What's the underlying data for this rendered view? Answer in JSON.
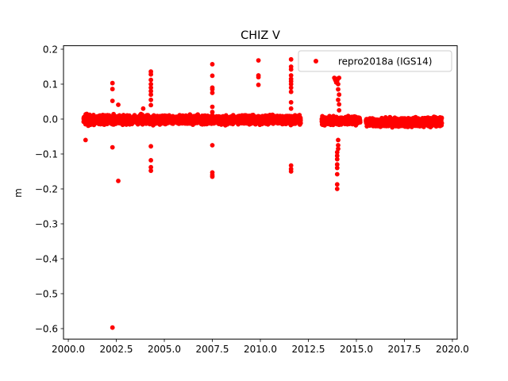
{
  "chart_data": {
    "type": "scatter",
    "title": "CHIZ V",
    "xlabel": "",
    "ylabel": "m",
    "xlim": [
      1999.75,
      2020.25
    ],
    "ylim": [
      -0.63,
      0.21
    ],
    "xticks": [
      2000.0,
      2002.5,
      2005.0,
      2007.5,
      2010.0,
      2012.5,
      2015.0,
      2017.5,
      2020.0
    ],
    "xtick_labels": [
      "2000.0",
      "2002.5",
      "2005.0",
      "2007.5",
      "2010.0",
      "2012.5",
      "2015.0",
      "2017.5",
      "2020.0"
    ],
    "yticks": [
      0.2,
      0.1,
      0.0,
      -0.1,
      -0.2,
      -0.3,
      -0.4,
      -0.5,
      -0.6
    ],
    "ytick_labels": [
      "0.2",
      "0.1",
      "0.0",
      "−0.1",
      "−0.2",
      "−0.3",
      "−0.4",
      "−0.5",
      "−0.6"
    ],
    "grid": false,
    "legend_position": "top-right",
    "series": [
      {
        "name": "repro2018a (IGS14)",
        "color": "#ff0000",
        "marker": "circle",
        "segments": [
          {
            "x_start": 2000.8,
            "x_end": 2012.1,
            "mean": -0.002,
            "spread": 0.011
          },
          {
            "x_start": 2013.2,
            "x_end": 2015.2,
            "mean": -0.004,
            "spread": 0.01
          },
          {
            "x_start": 2015.5,
            "x_end": 2019.45,
            "mean": -0.009,
            "spread": 0.011
          }
        ],
        "outliers": [
          {
            "x": 2000.9,
            "y": -0.06
          },
          {
            "x": 2002.3,
            "y": 0.103
          },
          {
            "x": 2002.3,
            "y": 0.086
          },
          {
            "x": 2002.3,
            "y": 0.052
          },
          {
            "x": 2002.3,
            "y": -0.081
          },
          {
            "x": 2002.3,
            "y": -0.597
          },
          {
            "x": 2002.6,
            "y": 0.041
          },
          {
            "x": 2002.6,
            "y": -0.177
          },
          {
            "x": 2003.9,
            "y": 0.03
          },
          {
            "x": 2004.3,
            "y": 0.136
          },
          {
            "x": 2004.3,
            "y": 0.128
          },
          {
            "x": 2004.3,
            "y": 0.112
          },
          {
            "x": 2004.3,
            "y": 0.1
          },
          {
            "x": 2004.3,
            "y": 0.09
          },
          {
            "x": 2004.3,
            "y": 0.08
          },
          {
            "x": 2004.3,
            "y": 0.07
          },
          {
            "x": 2004.3,
            "y": 0.055
          },
          {
            "x": 2004.3,
            "y": 0.04
          },
          {
            "x": 2004.3,
            "y": -0.078
          },
          {
            "x": 2004.3,
            "y": -0.118
          },
          {
            "x": 2004.3,
            "y": -0.138
          },
          {
            "x": 2004.3,
            "y": -0.148
          },
          {
            "x": 2007.5,
            "y": 0.157
          },
          {
            "x": 2007.5,
            "y": 0.124
          },
          {
            "x": 2007.5,
            "y": 0.09
          },
          {
            "x": 2007.5,
            "y": 0.085
          },
          {
            "x": 2007.5,
            "y": 0.075
          },
          {
            "x": 2007.5,
            "y": 0.035
          },
          {
            "x": 2007.5,
            "y": 0.02
          },
          {
            "x": 2007.5,
            "y": -0.075
          },
          {
            "x": 2007.5,
            "y": -0.153
          },
          {
            "x": 2007.5,
            "y": -0.16
          },
          {
            "x": 2007.5,
            "y": -0.165
          },
          {
            "x": 2009.9,
            "y": 0.168
          },
          {
            "x": 2009.9,
            "y": 0.125
          },
          {
            "x": 2009.9,
            "y": 0.12
          },
          {
            "x": 2009.9,
            "y": 0.098
          },
          {
            "x": 2011.6,
            "y": 0.171
          },
          {
            "x": 2011.6,
            "y": 0.15
          },
          {
            "x": 2011.6,
            "y": 0.142
          },
          {
            "x": 2011.6,
            "y": 0.125
          },
          {
            "x": 2011.6,
            "y": 0.115
          },
          {
            "x": 2011.6,
            "y": 0.108
          },
          {
            "x": 2011.6,
            "y": 0.1
          },
          {
            "x": 2011.6,
            "y": 0.09
          },
          {
            "x": 2011.6,
            "y": 0.078
          },
          {
            "x": 2011.6,
            "y": 0.048
          },
          {
            "x": 2011.6,
            "y": 0.03
          },
          {
            "x": 2011.6,
            "y": -0.133
          },
          {
            "x": 2011.6,
            "y": -0.143
          },
          {
            "x": 2011.6,
            "y": -0.15
          },
          {
            "x": 2013.85,
            "y": 0.118
          },
          {
            "x": 2013.9,
            "y": 0.112
          },
          {
            "x": 2013.95,
            "y": 0.105
          },
          {
            "x": 2014.0,
            "y": 0.11
          },
          {
            "x": 2014.0,
            "y": 0.115
          },
          {
            "x": 2014.05,
            "y": 0.1
          },
          {
            "x": 2014.1,
            "y": 0.118
          },
          {
            "x": 2014.05,
            "y": 0.085
          },
          {
            "x": 2014.1,
            "y": 0.07
          },
          {
            "x": 2014.05,
            "y": 0.055
          },
          {
            "x": 2014.1,
            "y": 0.042
          },
          {
            "x": 2014.1,
            "y": 0.025
          },
          {
            "x": 2014.05,
            "y": -0.06
          },
          {
            "x": 2014.05,
            "y": -0.075
          },
          {
            "x": 2014.05,
            "y": -0.085
          },
          {
            "x": 2014.0,
            "y": -0.095
          },
          {
            "x": 2014.0,
            "y": -0.105
          },
          {
            "x": 2014.0,
            "y": -0.115
          },
          {
            "x": 2014.0,
            "y": -0.13
          },
          {
            "x": 2014.0,
            "y": -0.14
          },
          {
            "x": 2014.0,
            "y": -0.158
          },
          {
            "x": 2014.0,
            "y": -0.187
          },
          {
            "x": 2014.0,
            "y": -0.2
          }
        ]
      }
    ]
  }
}
